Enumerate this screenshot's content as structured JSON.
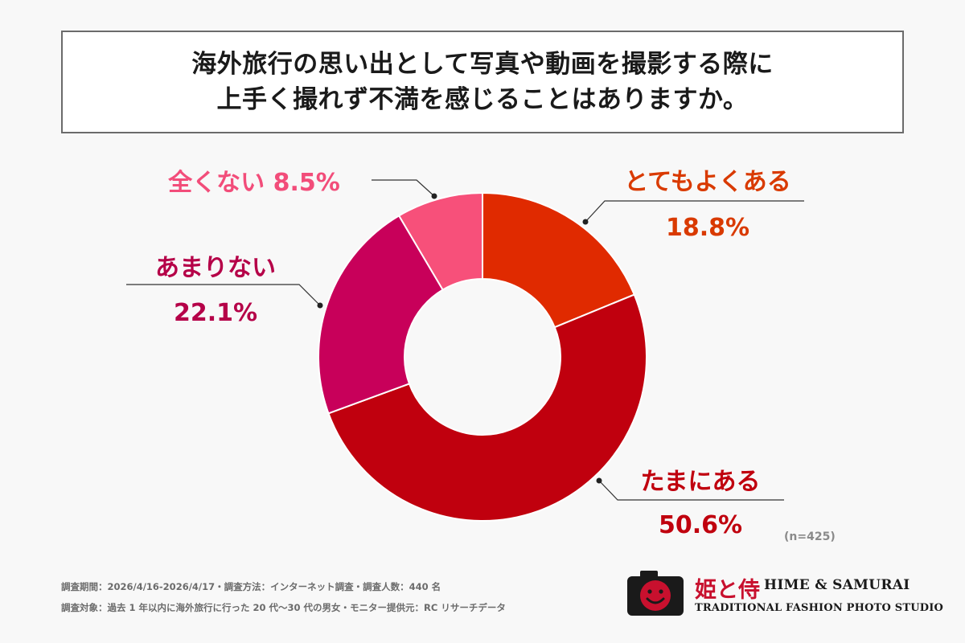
{
  "title": {
    "line1": "海外旅行の思い出として写真や動画を撮影する際に",
    "line2": "上手く撮れず不満を感じることはありますか。"
  },
  "chart_data": {
    "type": "pie",
    "donut": true,
    "slices": [
      {
        "label": "とてもよくある",
        "value": 18.8,
        "display": "18.8%",
        "color": "#e02a00"
      },
      {
        "label": "たまにある",
        "value": 50.6,
        "display": "50.6%",
        "color": "#c0000e"
      },
      {
        "label": "あまりない",
        "value": 22.1,
        "display": "22.1%",
        "color": "#c8005a"
      },
      {
        "label": "全くない",
        "value": 8.5,
        "display": "8.5%",
        "color": "#f7507a"
      }
    ],
    "label_colors": [
      "#d93a00",
      "#c0000e",
      "#b50048",
      "#f24d7a"
    ],
    "sample_note": "(n=425)"
  },
  "footnotes": {
    "line1": "調査期間：2026/4/16-2026/4/17・調査方法：インターネット調査・調査人数：440 名",
    "line2": "調査対象：過去 1 年以内に海外旅行に行った 20 代〜30 代の男女・モニター提供元：RC リサーチデータ"
  },
  "logo": {
    "jp": "姫と侍",
    "en": "HIME & SAMURAI",
    "tagline": "TRADITIONAL FASHION PHOTO STUDIO"
  }
}
